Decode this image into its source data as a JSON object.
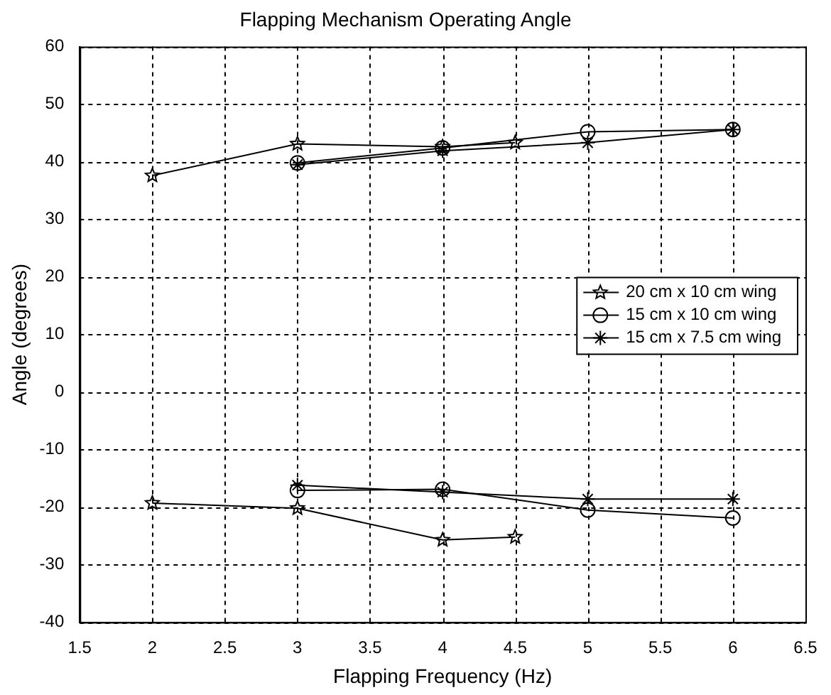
{
  "chart_data": {
    "type": "line",
    "title": "Flapping Mechanism Operating Angle",
    "xlabel": "Flapping Frequency (Hz)",
    "ylabel": "Angle (degrees)",
    "xlim": [
      1.5,
      6.5
    ],
    "xticks": [
      1.5,
      2,
      2.5,
      3,
      3.5,
      4,
      4.5,
      5,
      5.5,
      6,
      6.5
    ],
    "ylim": [
      -40,
      60
    ],
    "yticks": [
      -40,
      -30,
      -20,
      -10,
      0,
      10,
      20,
      30,
      40,
      50,
      60
    ],
    "grid": true,
    "legend": "right",
    "line_style": "solid",
    "series": [
      {
        "name": "20 cm x 10 cm wing",
        "color": "#000000",
        "marker": "star",
        "x": [
          2,
          3,
          4,
          4.5
        ],
        "values": [
          37.6,
          43.1,
          42.6,
          43.3
        ]
      },
      {
        "name": "15 cm x 10 cm wing",
        "color": "#000000",
        "marker": "circle",
        "x": [
          3,
          4,
          5,
          6
        ],
        "values": [
          39.8,
          42.4,
          45.2,
          45.6
        ]
      },
      {
        "name": "15 cm x 7.5 cm wing",
        "color": "#000000",
        "marker": "cross",
        "x": [
          3,
          4,
          5,
          6
        ],
        "values": [
          39.5,
          41.9,
          43.3,
          45.6
        ]
      },
      {
        "color": "#000000",
        "marker": "star",
        "x": [
          2,
          3,
          4,
          4.5
        ],
        "values": [
          -19.3,
          -20.2,
          -25.7,
          -25.2
        ]
      },
      {
        "color": "#000000",
        "marker": "circle",
        "x": [
          3,
          4,
          5,
          6
        ],
        "values": [
          -17.1,
          -16.9,
          -20.5,
          -21.9
        ]
      },
      {
        "color": "#000000",
        "marker": "cross",
        "x": [
          3,
          4,
          5,
          6
        ],
        "values": [
          -16.2,
          -17.4,
          -18.6,
          -18.6
        ]
      }
    ]
  }
}
